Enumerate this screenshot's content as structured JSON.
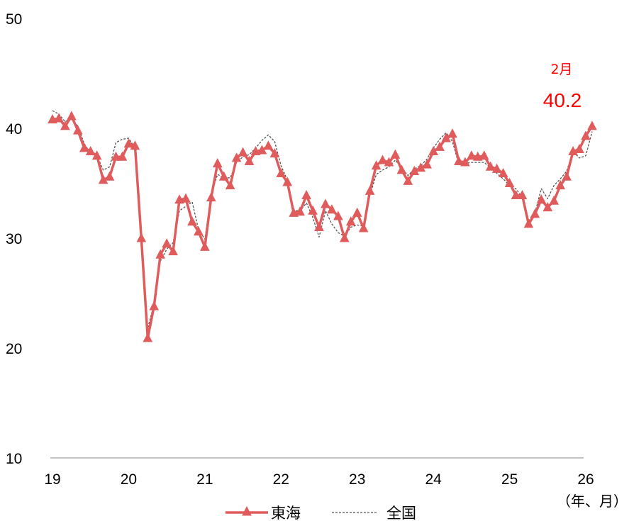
{
  "chart_data": {
    "type": "line",
    "ylim": [
      10,
      50
    ],
    "yticks": [
      "10",
      "20",
      "30",
      "40",
      "50"
    ],
    "x_start": 2019,
    "xtick_labels": [
      "19",
      "20",
      "21",
      "22",
      "23",
      "24",
      "25",
      "26"
    ],
    "x_unit_label": "（年、月）",
    "grid": false,
    "legend_position": "bottom",
    "annotation": {
      "month": "2月",
      "value": "40.2"
    },
    "series": [
      {
        "name": "東海",
        "color": "#e05c5c",
        "marker": "triangle",
        "values": [
          40.8,
          40.9,
          40.2,
          41.1,
          39.8,
          38.2,
          37.9,
          37.5,
          35.3,
          35.6,
          37.4,
          37.4,
          38.6,
          38.4,
          30.0,
          20.9,
          23.8,
          28.5,
          29.5,
          28.8,
          33.5,
          33.6,
          31.5,
          30.6,
          29.2,
          33.7,
          36.8,
          35.6,
          34.8,
          37.3,
          37.8,
          37.0,
          37.9,
          38.0,
          38.4,
          37.7,
          35.9,
          35.1,
          32.3,
          32.4,
          33.9,
          32.5,
          31.0,
          33.1,
          32.6,
          32.0,
          30.0,
          31.5,
          32.3,
          30.9,
          34.3,
          36.6,
          37.1,
          36.9,
          37.6,
          36.2,
          35.2,
          36.1,
          36.4,
          36.7,
          37.9,
          38.3,
          39.1,
          39.5,
          37.0,
          36.9,
          37.5,
          37.4,
          37.5,
          36.5,
          36.3,
          35.9,
          35.0,
          33.9,
          33.9,
          31.3,
          32.2,
          33.5,
          32.8,
          33.4,
          34.8,
          35.6,
          37.9,
          38.1,
          39.3,
          40.2
        ]
      },
      {
        "name": "全国",
        "color": "#555555",
        "marker": "none",
        "values": [
          41.6,
          41.3,
          40.6,
          40.9,
          40.2,
          38.6,
          37.7,
          37.5,
          36.2,
          36.5,
          38.7,
          39.0,
          39.1,
          38.2,
          30.0,
          21.8,
          24.0,
          27.9,
          29.0,
          29.6,
          32.5,
          32.9,
          33.3,
          30.8,
          29.9,
          34.0,
          35.8,
          35.5,
          35.5,
          36.9,
          37.4,
          37.6,
          38.2,
          38.9,
          39.4,
          38.8,
          36.6,
          35.3,
          32.5,
          32.5,
          33.2,
          31.9,
          30.1,
          32.5,
          31.3,
          30.5,
          30.2,
          31.0,
          31.2,
          31.1,
          33.9,
          35.8,
          36.2,
          36.5,
          37.1,
          36.4,
          35.7,
          36.3,
          36.6,
          37.2,
          38.2,
          39.0,
          39.6,
          38.8,
          36.7,
          36.8,
          36.9,
          36.9,
          36.9,
          36.4,
          35.9,
          35.4,
          34.8,
          34.5,
          33.7,
          31.6,
          32.3,
          34.5,
          33.6,
          34.8,
          35.4,
          36.1,
          37.9,
          37.3,
          37.5,
          39.7
        ]
      }
    ]
  }
}
